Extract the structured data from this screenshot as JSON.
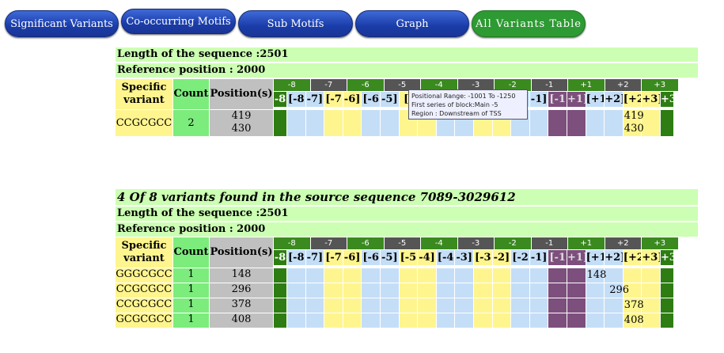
{
  "tabs": [
    {
      "label": "Significant Variants"
    },
    {
      "label": "Co-occurring Motifs"
    },
    {
      "label": "Sub Motifs"
    },
    {
      "label": "Graph"
    },
    {
      "label": "All Variants Table"
    }
  ],
  "colors": {
    "yellow": "#fff58f",
    "blue": "#c5def7",
    "purple": "#7d4f7d",
    "green": "#2e7d12",
    "grayhdr": "#555555",
    "greenhdr": "#3a8a1f",
    "header_bg": "#ccffb3"
  },
  "table1": {
    "length": "Length of the sequence :2501",
    "reference": "Reference position : 2000",
    "headers": {
      "variant": "Specific variant",
      "count": "Count",
      "positions": "Position(s)"
    },
    "rows": [
      {
        "variant": "CCGCGCC",
        "count": "2",
        "positions": "419\n430",
        "marker_col": "9",
        "marker_text": "419\n430"
      }
    ],
    "tooltip": [
      "Positional Range: -1001 To -1250",
      "First series of block:Main -5",
      "Region : Downstream of TSS"
    ]
  },
  "table2": {
    "title": "4 Of 8 variants found in the source sequence 7089-3029612",
    "length": "Length of the sequence :2501",
    "reference": "Reference position : 2000",
    "headers": {
      "variant": "Specific variant",
      "count": "Count",
      "positions": "Position(s)"
    },
    "rows": [
      {
        "variant": "GGGCGCC",
        "count": "1",
        "positions": "148",
        "marker": "148"
      },
      {
        "variant": "CCGCGCC",
        "count": "1",
        "positions": "296",
        "marker": "296"
      },
      {
        "variant": "CCGCGCC",
        "count": "1",
        "positions": "378",
        "marker": "378"
      },
      {
        "variant": "GCGCGCC",
        "count": "1",
        "positions": "408",
        "marker": "408"
      }
    ]
  },
  "blocks": [
    "-8",
    "-7",
    "-6",
    "-5",
    "-4",
    "-3",
    "-2",
    "-1",
    "+1",
    "+2",
    "+3"
  ],
  "subs1": [
    "-8",
    "[-8",
    "-7]",
    "[-7",
    "-6]",
    "[-6",
    "-5]",
    "[-",
    "",
    "",
    "",
    "",
    "",
    "",
    "-1]",
    "[-1",
    "+1]",
    "[+1",
    "+2]",
    "[+2",
    "+3]",
    "+3"
  ],
  "subs2": [
    "-8",
    "[-8",
    "-7]",
    "[-7",
    "-6]",
    "[-6",
    "-5]",
    "[-5",
    "-4]",
    "[-4",
    "-3]",
    "[-3",
    "-2]",
    "[-2",
    "-1]",
    "[-1",
    "+1]",
    "[+1",
    "+2]",
    "[+2",
    "+3]",
    "+3"
  ]
}
